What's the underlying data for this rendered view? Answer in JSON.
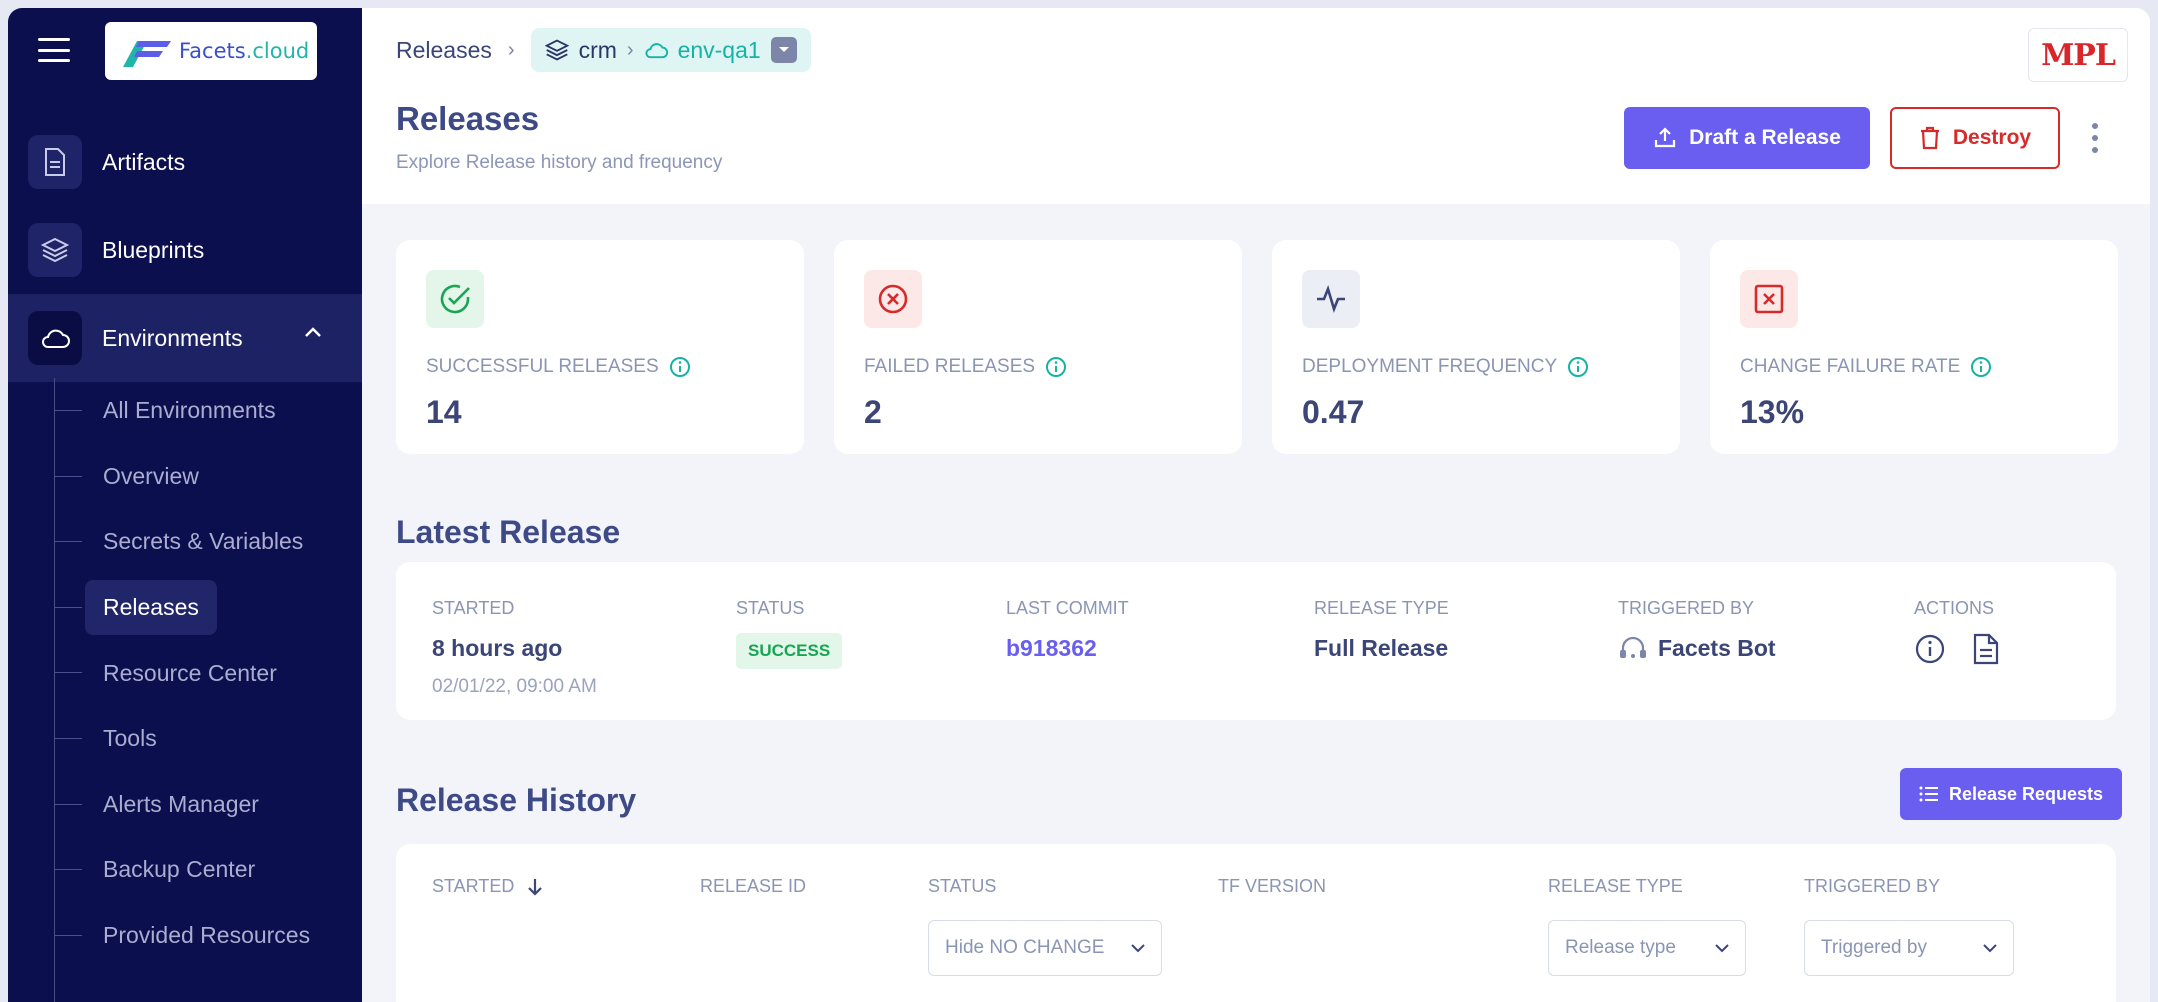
{
  "app": {
    "logo_text_1": "Facets",
    "logo_text_2": ".cloud",
    "brand_badge": "MPL"
  },
  "sidebar": {
    "items": [
      {
        "label": "Artifacts",
        "icon": "document-icon"
      },
      {
        "label": "Blueprints",
        "icon": "layers-icon"
      },
      {
        "label": "Environments",
        "icon": "cloud-icon"
      }
    ],
    "subitems": [
      "All Environments",
      "Overview",
      "Secrets & Variables",
      "Releases",
      "Resource Center",
      "Tools",
      "Alerts Manager",
      "Backup Center",
      "Provided Resources"
    ],
    "active_subitem": "Releases"
  },
  "breadcrumb": {
    "root": "Releases",
    "project": "crm",
    "environment": "env-qa1"
  },
  "header": {
    "title": "Releases",
    "subtitle": "Explore Release history and frequency",
    "draft_label": "Draft a Release",
    "destroy_label": "Destroy"
  },
  "stats": [
    {
      "label": "SUCCESSFUL RELEASES",
      "value": "14",
      "color": "#1aa554"
    },
    {
      "label": "FAILED RELEASES",
      "value": "2",
      "color": "#d62b2b"
    },
    {
      "label": "DEPLOYMENT FREQUENCY",
      "value": "0.47",
      "color": "#3b4677"
    },
    {
      "label": "CHANGE FAILURE RATE",
      "value": "13%",
      "color": "#d62b2b"
    }
  ],
  "latest": {
    "title": "Latest Release",
    "headers": {
      "started": "STARTED",
      "status": "STATUS",
      "commit": "LAST COMMIT",
      "type": "RELEASE TYPE",
      "triggered": "TRIGGERED BY",
      "actions": "ACTIONS"
    },
    "started": "8 hours ago",
    "started_date": "02/01/22, 09:00 AM",
    "status": "SUCCESS",
    "commit": "b918362",
    "type": "Full Release",
    "triggered_by": "Facets Bot"
  },
  "history": {
    "title": "Release History",
    "requests_label": "Release Requests",
    "columns": [
      "STARTED",
      "RELEASE ID",
      "STATUS",
      "TF VERSION",
      "RELEASE TYPE",
      "TRIGGERED BY"
    ],
    "filters": {
      "status": "Hide NO CHANGE",
      "type": "Release type",
      "triggered": "Triggered by"
    }
  }
}
